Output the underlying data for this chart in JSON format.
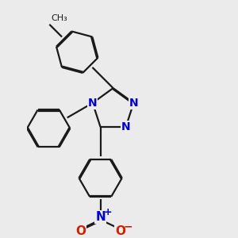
{
  "bg_color": "#ebebeb",
  "bond_color": "#1a1a1a",
  "n_color": "#0000cc",
  "o_color": "#cc2200",
  "line_width": 1.6,
  "dbo": 0.022,
  "font_size": 10,
  "small_font_size": 8,
  "xlim": [
    -2.2,
    2.5
  ],
  "ylim": [
    -3.2,
    2.8
  ]
}
